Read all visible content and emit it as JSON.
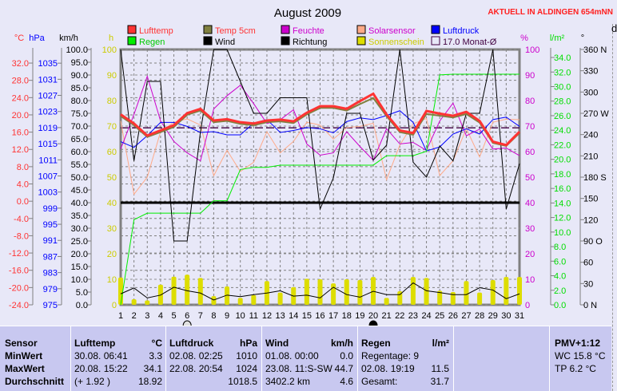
{
  "header": {
    "title": "August 2009",
    "station": "AKTUELL IN ALDINGEN 654mNN"
  },
  "legend": [
    {
      "label": "Lufttemp",
      "color": "#ff3333",
      "text_color": "#ff3333"
    },
    {
      "label": "Temp 5cm",
      "color": "#808040",
      "text_color": "#ff3333"
    },
    {
      "label": "Feuchte",
      "color": "#cc00cc",
      "text_color": "#cc00cc"
    },
    {
      "label": "Solarsensor",
      "color": "#ffaa88",
      "text_color": "#cc00cc"
    },
    {
      "label": "Luftdruck",
      "color": "#0000ff",
      "text_color": "#0000ff"
    },
    {
      "label": "Regen",
      "color": "#00ee00",
      "text_color": "#00cc00"
    },
    {
      "label": "Wind",
      "color": "#000000",
      "text_color": "#000000"
    },
    {
      "label": "Richtung",
      "color": "#000000",
      "text_color": "#000000"
    },
    {
      "label": "Sonnenschein",
      "color": "#dddd00",
      "text_color": "#cccc00"
    },
    {
      "label": "17.0 Monat-Ø",
      "color": "none",
      "text_color": "#400040"
    }
  ],
  "chart_data": {
    "type": "line",
    "title": "August 2009",
    "x": [
      1,
      2,
      3,
      4,
      5,
      6,
      7,
      8,
      9,
      10,
      11,
      12,
      13,
      14,
      15,
      16,
      17,
      18,
      19,
      20,
      21,
      22,
      23,
      24,
      25,
      26,
      27,
      28,
      29,
      30,
      31
    ],
    "axes": {
      "temp": {
        "label": "°C",
        "color": "#ff3333",
        "range": [
          -24,
          35.15
        ],
        "ticks": [
          -24,
          -20,
          -16,
          -12,
          -8,
          -4,
          0,
          4,
          8,
          12,
          16,
          20,
          24,
          28,
          32
        ],
        "decimals": 1
      },
      "pressure": {
        "label": "hPa",
        "color": "#0000ff",
        "range": [
          975,
          1038.4
        ],
        "ticks": [
          975,
          979,
          983,
          987,
          991,
          995,
          999,
          1003,
          1007,
          1011,
          1015,
          1019,
          1023,
          1027,
          1031,
          1035
        ],
        "decimals": 0
      },
      "wind": {
        "label": "km/h",
        "color": "#000000",
        "range": [
          0,
          100
        ],
        "ticks": [
          0,
          5,
          10,
          15,
          20,
          25,
          30,
          35,
          40,
          45,
          50,
          55,
          60,
          65,
          70,
          75,
          80,
          85,
          90,
          95,
          100
        ],
        "decimals": 1
      },
      "sun": {
        "label": "h",
        "color": "#cccc00",
        "range": [
          0,
          100
        ],
        "ticks": [
          0,
          10,
          20,
          30,
          40,
          50,
          60,
          70,
          80,
          90,
          100
        ],
        "decimals": 0
      },
      "humidity": {
        "label": "%",
        "color": "#cc00cc",
        "range": [
          0,
          100
        ],
        "ticks": [
          0,
          10,
          20,
          30,
          40,
          50,
          60,
          70,
          80,
          90,
          100
        ],
        "decimals": 0
      },
      "rain": {
        "label": "l/m²",
        "color": "#00dd00",
        "range": [
          0,
          35.1
        ],
        "ticks": [
          0,
          2,
          4,
          6,
          8,
          10,
          12,
          14,
          16,
          18,
          20,
          22,
          24,
          26,
          28,
          30,
          32,
          34
        ],
        "decimals": 1
      },
      "direction": {
        "label": "°",
        "color": "#000000",
        "range": [
          0,
          360
        ],
        "ticks": [
          0,
          30,
          60,
          90,
          120,
          150,
          180,
          210,
          240,
          270,
          300,
          330,
          360
        ],
        "tick_labels": [
          "0   N",
          "30",
          "60",
          "90  O",
          "120",
          "150",
          "180 S",
          "210",
          "240",
          "270 W",
          "300",
          "330",
          "360 N"
        ]
      }
    },
    "series": [
      {
        "name": "Solarsensor",
        "axis": "humidity",
        "color": "#ffaa88",
        "width": 1,
        "values": [
          72,
          43.3,
          50,
          67.8,
          71.5,
          72.8,
          70.4,
          50.6,
          60.5,
          52.2,
          55.8,
          67.8,
          59.5,
          64,
          71.5,
          70.4,
          64.9,
          69.4,
          69.9,
          71.1,
          49,
          62.6,
          70.9,
          73,
          50.6,
          56.4,
          69,
          57.9,
          71.5,
          72.7,
          72.5
        ]
      },
      {
        "name": "Feuchte",
        "axis": "humidity",
        "color": "#cc00cc",
        "width": 1,
        "values": [
          61,
          74.6,
          89.5,
          72,
          64,
          59.5,
          56.4,
          76.7,
          81.9,
          86,
          78.8,
          71,
          72.5,
          76.4,
          63,
          58.6,
          59.5,
          67.8,
          62,
          56.6,
          69,
          63,
          63.6,
          60.5,
          72,
          79,
          66.2,
          68.8,
          61,
          61.4,
          58.4
        ]
      },
      {
        "name": "Luftdruck",
        "axis": "pressure",
        "color": "#0000ff",
        "width": 1,
        "values": [
          1015.5,
          1014.1,
          1017,
          1020.3,
          1020.3,
          1019.3,
          1017.8,
          1018,
          1017.2,
          1017.2,
          1020.1,
          1021,
          1017.8,
          1018.3,
          1019,
          1018.7,
          1017.7,
          1020.5,
          1021.4,
          1021,
          1022,
          1023.2,
          1020.3,
          1013.2,
          1014.2,
          1017.4,
          1018.7,
          1017.4,
          1021,
          1021.6,
          1019.3
        ]
      },
      {
        "name": "Regen",
        "axis": "rain",
        "color": "#00ee00",
        "width": 1,
        "values": [
          0,
          11.7,
          12.6,
          12.6,
          12.6,
          12.6,
          12.6,
          14.3,
          14.3,
          18.6,
          18.9,
          18.9,
          19.2,
          19.2,
          19.2,
          19.2,
          19.2,
          19.2,
          19.2,
          19.2,
          20.5,
          20.5,
          20.5,
          21.1,
          31.6,
          31.7,
          31.7,
          31.7,
          31.7,
          31.7,
          31.7
        ]
      },
      {
        "name": "Richtung",
        "axis": "direction",
        "color": "#000000",
        "width": 1,
        "values": [
          360,
          203,
          315,
          315,
          90,
          90,
          244,
          360,
          360,
          315,
          270,
          270,
          292,
          292,
          292,
          135,
          179,
          270,
          270,
          204,
          225,
          360,
          201,
          180,
          224,
          203,
          270,
          270,
          360,
          135,
          199
        ]
      },
      {
        "name": "Wind",
        "axis": "wind",
        "color": "#000000",
        "width": 1,
        "values": [
          4.3,
          6.6,
          2.7,
          3.8,
          6.9,
          5.5,
          4.6,
          1.9,
          3.8,
          3.2,
          4,
          4.6,
          5.5,
          3.4,
          3.8,
          2.7,
          6.9,
          4,
          3,
          5.3,
          4,
          4,
          8.6,
          5.5,
          4.8,
          4,
          4,
          6.7,
          5.8,
          2.4,
          4.3
        ]
      },
      {
        "name": "Temp 5cm",
        "axis": "temp",
        "color": "#808040",
        "width": 2,
        "values": [
          19.7,
          17.6,
          14.9,
          16,
          17.2,
          20,
          21,
          18.3,
          18.6,
          17.9,
          17.6,
          18.3,
          18.5,
          18.1,
          20.1,
          21.6,
          21.6,
          21,
          22.5,
          23.9,
          19.7,
          16,
          15.4,
          20.2,
          19.8,
          19.4,
          20.2,
          18.2,
          13.5,
          12.8,
          15.8
        ]
      },
      {
        "name": "Lufttemp",
        "axis": "temp",
        "color": "#ff3333",
        "width": 3,
        "values": [
          20.1,
          18,
          15.2,
          16.4,
          17.6,
          20.4,
          21.4,
          18.7,
          19,
          18.3,
          18,
          18.7,
          18.9,
          18.5,
          20.5,
          22,
          22,
          21.4,
          23.2,
          24.9,
          20.1,
          16.4,
          15.8,
          20.9,
          20.3,
          19.8,
          20.7,
          18.6,
          13.8,
          13,
          16.1
        ]
      }
    ],
    "bars": {
      "name": "Sonnenschein",
      "axis": "sun",
      "color": "#dddd00",
      "values": [
        10.7,
        2.2,
        1.7,
        7.9,
        11,
        11.8,
        10.5,
        3.4,
        7.2,
        2.7,
        3.8,
        9.3,
        4.8,
        6.9,
        10.2,
        10,
        8.4,
        10,
        9.7,
        10.9,
        2.7,
        5.3,
        10.9,
        10.5,
        5.5,
        5,
        9.3,
        4.8,
        9.7,
        10.9,
        10.9
      ]
    },
    "reference_lines": [
      {
        "name": "Monat-Ø Lufttemp",
        "axis": "temp",
        "value": 17.0,
        "color": "#400040",
        "style": "dashed"
      },
      {
        "name": "Richtung-Ø",
        "axis": "direction",
        "value": 144,
        "color": "#000000",
        "style": "thick"
      }
    ],
    "moon_phases": [
      {
        "day": 6,
        "phase": "full"
      },
      {
        "day": 20,
        "phase": "new"
      }
    ]
  },
  "stats": {
    "row_labels": [
      "Sensor",
      "MinWert",
      "MaxWert",
      "Durchschnitt"
    ],
    "columns": [
      {
        "title": "Lufttemp",
        "unit": "°C",
        "rows": [
          [
            "30.08.  06:41",
            "3.3"
          ],
          [
            "20.08.  15:22",
            "34.1"
          ],
          [
            "(+ 1.92 )",
            "18.92"
          ]
        ]
      },
      {
        "title": "Luftdruck",
        "unit": "hPa",
        "rows": [
          [
            "02.08.  02:25",
            "1010"
          ],
          [
            "22.08.  20:54",
            "1024"
          ],
          [
            "",
            "1018.5"
          ]
        ]
      },
      {
        "title": "Wind",
        "unit": "km/h",
        "rows": [
          [
            "01.08.  00:00",
            "0.0"
          ],
          [
            "23.08.  11:S-SW",
            "44.7"
          ],
          [
            "3402.2 km",
            "4.6"
          ]
        ]
      },
      {
        "title": "Regen",
        "unit": "l/m²",
        "rows": [
          [
            "Regentage: 9",
            ""
          ],
          [
            "02.08.  19:19",
            "11.5"
          ],
          [
            "Gesamt:",
            "31.7"
          ]
        ]
      }
    ],
    "pmv": {
      "title": "PMV+1:12",
      "wc": "WC 15.8 °C",
      "tp": "TP 6.2 °C"
    }
  }
}
